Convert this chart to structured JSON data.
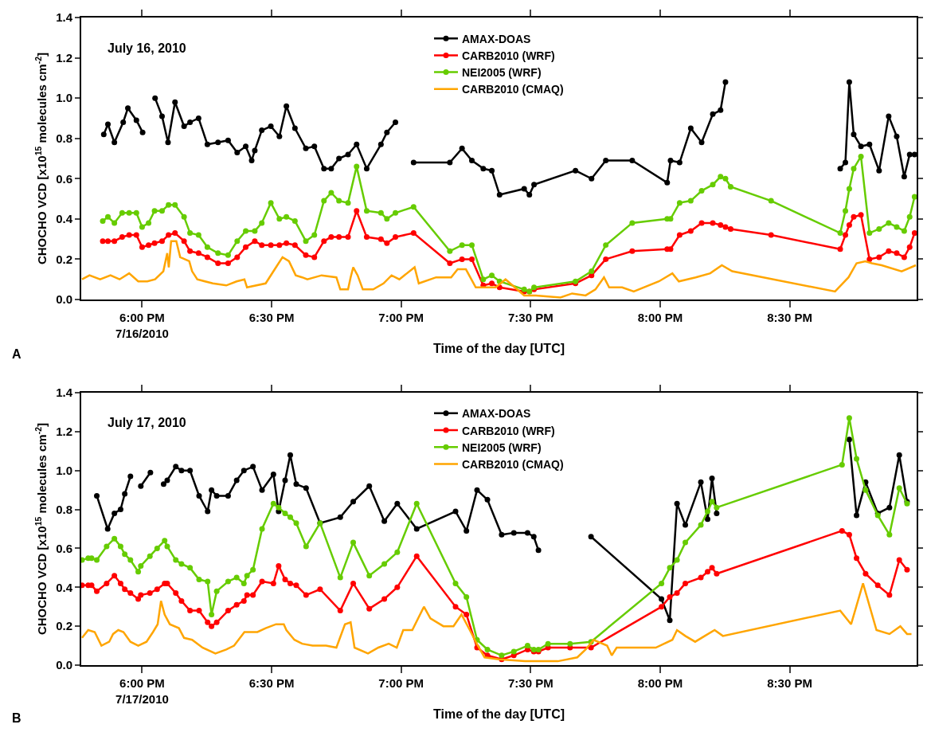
{
  "chart_data": [
    {
      "type": "line",
      "xlabel": "Time of the day [UTC]",
      "ylabel": "CHOCHO VCD [x10$^{15}$ molecules cm$^{-2}$]",
      "annotations": [
        "July 16, 2010",
        "A"
      ],
      "legend": "top",
      "marker": "circle",
      "line_style": "solid",
      "grid": false,
      "xlim": [
        17.765,
        20.99
      ],
      "xticks": [
        {
          "value": 18,
          "label": "6:00 PM\n7/16/2010"
        },
        {
          "value": 18.5,
          "label": "6:30 PM"
        },
        {
          "value": 19,
          "label": "7:00 PM"
        },
        {
          "value": 19.5,
          "label": "7:30 PM"
        },
        {
          "value": 20,
          "label": "8:00 PM"
        },
        {
          "value": 20.5,
          "label": "8:30 PM"
        }
      ],
      "ylim": [
        0,
        1.4
      ],
      "yticks": [
        {
          "value": 0,
          "label": "0.0"
        },
        {
          "value": 0.2,
          "label": "0.2"
        },
        {
          "value": 0.4,
          "label": "0.4"
        },
        {
          "value": 0.6,
          "label": "0.6"
        },
        {
          "value": 0.8,
          "label": "0.8"
        },
        {
          "value": 1,
          "label": "1.0"
        },
        {
          "value": 1.2,
          "label": "1.2"
        },
        {
          "value": 1.4,
          "label": "1.4"
        }
      ],
      "series": [
        {
          "name": "AMAX-DOAS",
          "color": "#000000",
          "x": [
            17.852,
            17.868,
            17.893,
            17.927,
            17.945,
            17.978,
            18.002,
            18.025,
            18.05,
            18.077,
            18.1,
            18.127,
            18.162,
            18.185,
            18.218,
            18.252,
            18.293,
            18.332,
            18.367,
            18.4,
            18.423,
            18.435,
            18.462,
            18.497,
            18.53,
            18.557,
            18.59,
            18.632,
            18.665,
            18.702,
            18.73,
            18.76,
            18.795,
            18.828,
            18.867,
            18.922,
            18.945,
            18.978,
            19.02,
            19.048,
            19.188,
            19.235,
            19.273,
            19.317,
            19.35,
            19.38,
            19.475,
            19.495,
            19.513,
            19.673,
            19.735,
            19.79,
            19.892,
            20.027,
            20.04,
            20.075,
            20.118,
            20.16,
            20.203,
            20.233,
            20.252,
            20.5,
            20.695,
            20.715,
            20.73,
            20.747,
            20.775,
            20.808,
            20.845,
            20.882,
            20.913,
            20.942,
            20.963,
            20.982
          ],
          "values": [
            0.82,
            0.87,
            0.78,
            0.88,
            0.95,
            0.89,
            0.83,
            null,
            1.0,
            0.91,
            0.78,
            0.98,
            0.86,
            0.88,
            0.9,
            0.77,
            0.78,
            0.79,
            0.73,
            0.76,
            0.69,
            0.74,
            0.84,
            0.86,
            0.81,
            0.96,
            0.85,
            0.75,
            0.76,
            0.65,
            0.65,
            0.7,
            0.72,
            0.77,
            0.65,
            0.77,
            0.83,
            0.88,
            null,
            0.68,
            0.68,
            0.75,
            0.69,
            0.65,
            0.64,
            0.52,
            0.55,
            0.52,
            0.57,
            0.64,
            0.6,
            0.69,
            0.69,
            0.58,
            0.69,
            0.68,
            0.85,
            0.78,
            0.92,
            0.94,
            1.08,
            null,
            0.65,
            0.68,
            1.08,
            0.82,
            0.76,
            0.77,
            0.64,
            0.91,
            0.81,
            0.61,
            0.72,
            0.72
          ]
        },
        {
          "name": "CARB2010 (WRF)",
          "color": "#ff0000",
          "x": [
            17.848,
            17.868,
            17.893,
            17.923,
            17.95,
            17.978,
            18.0,
            18.025,
            18.048,
            18.077,
            18.102,
            18.127,
            18.162,
            18.185,
            18.218,
            18.252,
            18.293,
            18.332,
            18.367,
            18.4,
            18.435,
            18.462,
            18.497,
            18.53,
            18.557,
            18.59,
            18.632,
            18.665,
            18.702,
            18.73,
            18.76,
            18.795,
            18.828,
            18.867,
            18.922,
            18.945,
            18.978,
            19.048,
            19.188,
            19.235,
            19.273,
            19.317,
            19.35,
            19.38,
            19.475,
            19.495,
            19.513,
            19.673,
            19.735,
            19.79,
            19.892,
            20.027,
            20.04,
            20.075,
            20.118,
            20.16,
            20.203,
            20.233,
            20.252,
            20.272,
            20.428,
            20.695,
            20.715,
            20.73,
            20.747,
            20.775,
            20.808,
            20.845,
            20.882,
            20.913,
            20.942,
            20.963,
            20.982
          ],
          "values": [
            0.29,
            0.29,
            0.29,
            0.31,
            0.32,
            0.32,
            0.26,
            0.27,
            0.28,
            0.29,
            0.32,
            0.33,
            0.29,
            0.24,
            0.23,
            0.21,
            0.18,
            0.18,
            0.21,
            0.26,
            0.29,
            0.27,
            0.27,
            0.27,
            0.28,
            0.27,
            0.22,
            0.21,
            0.29,
            0.31,
            0.31,
            0.31,
            0.44,
            0.31,
            0.3,
            0.28,
            0.31,
            0.33,
            0.18,
            0.2,
            0.2,
            0.07,
            0.08,
            0.06,
            0.04,
            0.04,
            0.05,
            0.08,
            0.12,
            0.2,
            0.24,
            0.25,
            0.25,
            0.32,
            0.34,
            0.38,
            0.38,
            0.37,
            0.36,
            0.35,
            0.32,
            0.25,
            0.32,
            0.37,
            0.41,
            0.42,
            0.2,
            0.21,
            0.24,
            0.23,
            0.21,
            0.26,
            0.33
          ]
        },
        {
          "name": "NEI2005 (WRF)",
          "color": "#66cc00",
          "x": [
            17.848,
            17.868,
            17.893,
            17.923,
            17.95,
            17.978,
            18.0,
            18.025,
            18.048,
            18.077,
            18.102,
            18.127,
            18.162,
            18.185,
            18.218,
            18.252,
            18.293,
            18.332,
            18.367,
            18.4,
            18.435,
            18.462,
            18.497,
            18.53,
            18.557,
            18.59,
            18.632,
            18.665,
            18.702,
            18.73,
            18.76,
            18.795,
            18.828,
            18.867,
            18.922,
            18.945,
            18.978,
            19.048,
            19.188,
            19.235,
            19.273,
            19.317,
            19.35,
            19.38,
            19.475,
            19.495,
            19.513,
            19.673,
            19.735,
            19.79,
            19.892,
            20.027,
            20.04,
            20.075,
            20.118,
            20.16,
            20.203,
            20.233,
            20.252,
            20.272,
            20.428,
            20.695,
            20.715,
            20.73,
            20.747,
            20.775,
            20.808,
            20.845,
            20.882,
            20.913,
            20.942,
            20.963,
            20.982
          ],
          "values": [
            0.39,
            0.41,
            0.38,
            0.43,
            0.43,
            0.43,
            0.36,
            0.38,
            0.44,
            0.44,
            0.47,
            0.47,
            0.41,
            0.33,
            0.32,
            0.26,
            0.23,
            0.22,
            0.29,
            0.34,
            0.34,
            0.38,
            0.48,
            0.4,
            0.41,
            0.39,
            0.29,
            0.32,
            0.49,
            0.53,
            0.49,
            0.48,
            0.66,
            0.44,
            0.43,
            0.4,
            0.43,
            0.46,
            0.24,
            0.27,
            0.27,
            0.1,
            0.12,
            0.09,
            0.05,
            0.04,
            0.06,
            0.09,
            0.14,
            0.27,
            0.38,
            0.4,
            0.4,
            0.48,
            0.49,
            0.54,
            0.57,
            0.61,
            0.6,
            0.56,
            0.49,
            0.33,
            0.44,
            0.55,
            0.65,
            0.71,
            0.33,
            0.35,
            0.38,
            0.36,
            0.34,
            0.41,
            0.51
          ]
        },
        {
          "name": "CARB2010 (CMAQ)",
          "color": "#ffa500",
          "marker": "none",
          "x": [
            17.768,
            17.797,
            17.838,
            17.878,
            17.913,
            17.95,
            17.985,
            18.02,
            18.05,
            18.082,
            18.097,
            18.103,
            18.112,
            18.132,
            18.147,
            18.182,
            18.193,
            18.213,
            18.273,
            18.325,
            18.365,
            18.395,
            18.405,
            18.477,
            18.517,
            18.542,
            18.567,
            18.593,
            18.618,
            18.638,
            18.693,
            18.75,
            18.765,
            18.795,
            18.805,
            18.815,
            18.832,
            18.852,
            18.892,
            18.932,
            18.963,
            18.993,
            19.052,
            19.068,
            19.135,
            19.193,
            19.218,
            19.25,
            19.288,
            19.365,
            19.403,
            19.475,
            19.52,
            19.615,
            19.66,
            19.712,
            19.75,
            19.783,
            19.803,
            19.853,
            19.898,
            19.995,
            20.047,
            20.072,
            20.137,
            20.193,
            20.238,
            20.278,
            20.675,
            20.727,
            20.758,
            20.792,
            20.817,
            20.855,
            20.932,
            20.987
          ],
          "values": [
            0.1,
            0.12,
            0.1,
            0.12,
            0.1,
            0.13,
            0.09,
            0.09,
            0.1,
            0.14,
            0.23,
            0.16,
            0.29,
            0.29,
            0.21,
            0.19,
            0.14,
            0.1,
            0.08,
            0.07,
            0.09,
            0.1,
            0.06,
            0.08,
            0.16,
            0.21,
            0.19,
            0.12,
            0.11,
            0.1,
            0.12,
            0.11,
            0.05,
            0.05,
            0.11,
            0.16,
            0.12,
            0.05,
            0.05,
            0.08,
            0.12,
            0.1,
            0.16,
            0.08,
            0.11,
            0.11,
            0.15,
            0.15,
            0.06,
            0.06,
            0.1,
            0.02,
            0.02,
            0.01,
            0.03,
            0.02,
            0.05,
            0.11,
            0.06,
            0.06,
            0.04,
            0.09,
            0.13,
            0.09,
            0.11,
            0.13,
            0.17,
            0.14,
            0.04,
            0.11,
            0.18,
            0.19,
            0.18,
            0.17,
            0.14,
            0.17
          ]
        }
      ]
    },
    {
      "type": "line",
      "xlabel": "Time of the day [UTC]",
      "ylabel": "CHOCHO VCD [x10$^{15}$ molecules cm$^{-2}$]",
      "annotations": [
        "July 17, 2010",
        "B"
      ],
      "legend": "top",
      "marker": "circle",
      "line_style": "solid",
      "grid": false,
      "xlim": [
        17.765,
        20.99
      ],
      "xticks": [
        {
          "value": 18,
          "label": "6:00 PM\n7/17/2010"
        },
        {
          "value": 18.5,
          "label": "6:30 PM"
        },
        {
          "value": 19,
          "label": "7:00 PM"
        },
        {
          "value": 19.5,
          "label": "7:30 PM"
        },
        {
          "value": 20,
          "label": "8:00 PM"
        },
        {
          "value": 20.5,
          "label": "8:30 PM"
        }
      ],
      "ylim": [
        0,
        1.4
      ],
      "yticks": [
        {
          "value": 0,
          "label": "0.0"
        },
        {
          "value": 0.2,
          "label": "0.2"
        },
        {
          "value": 0.4,
          "label": "0.4"
        },
        {
          "value": 0.6,
          "label": "0.6"
        },
        {
          "value": 0.8,
          "label": "0.8"
        },
        {
          "value": 1,
          "label": "1.0"
        },
        {
          "value": 1.2,
          "label": "1.2"
        },
        {
          "value": 1.4,
          "label": "1.4"
        }
      ],
      "series": [
        {
          "name": "AMAX-DOAS",
          "color": "#000000",
          "x": [
            17.825,
            17.867,
            17.893,
            17.917,
            17.933,
            17.955,
            17.975,
            17.995,
            18.032,
            18.06,
            18.083,
            18.097,
            18.13,
            18.152,
            18.185,
            18.22,
            18.253,
            18.268,
            18.288,
            18.332,
            18.365,
            18.393,
            18.428,
            18.463,
            18.507,
            18.527,
            18.552,
            18.572,
            18.595,
            18.633,
            18.687,
            18.765,
            18.815,
            18.877,
            18.935,
            18.985,
            19.06,
            19.21,
            19.252,
            19.293,
            19.333,
            19.388,
            19.435,
            19.488,
            19.512,
            19.53,
            19.65,
            19.733,
            20.005,
            20.037,
            20.065,
            20.097,
            20.157,
            20.183,
            20.2,
            20.218,
            20.5,
            20.73,
            20.758,
            20.793,
            20.84,
            20.885,
            20.923,
            20.953
          ],
          "values": [
            0.87,
            0.7,
            0.78,
            0.8,
            0.88,
            0.97,
            null,
            0.92,
            0.99,
            null,
            0.93,
            0.95,
            1.02,
            1.0,
            1.0,
            0.87,
            0.79,
            0.9,
            0.87,
            0.87,
            0.95,
            1.0,
            1.02,
            0.9,
            0.98,
            0.79,
            0.95,
            1.08,
            0.93,
            0.91,
            0.73,
            0.76,
            0.84,
            0.92,
            0.74,
            0.83,
            0.7,
            0.79,
            0.69,
            0.9,
            0.85,
            0.67,
            0.68,
            0.68,
            0.66,
            0.59,
            null,
            0.66,
            0.34,
            0.23,
            0.83,
            0.72,
            0.94,
            0.75,
            0.96,
            0.78,
            null,
            1.16,
            0.77,
            0.94,
            0.78,
            0.81,
            1.08,
            0.84
          ]
        },
        {
          "name": "CARB2010 (WRF)",
          "color": "#ff0000",
          "x": [
            17.768,
            17.792,
            17.805,
            17.825,
            17.863,
            17.893,
            17.917,
            17.933,
            17.955,
            17.985,
            17.995,
            18.03,
            18.058,
            18.087,
            18.097,
            18.13,
            18.152,
            18.185,
            18.22,
            18.253,
            18.268,
            18.288,
            18.332,
            18.365,
            18.393,
            18.405,
            18.428,
            18.463,
            18.507,
            18.527,
            18.552,
            18.572,
            18.595,
            18.633,
            18.687,
            18.765,
            18.815,
            18.877,
            18.935,
            18.985,
            19.06,
            19.21,
            19.252,
            19.293,
            19.333,
            19.388,
            19.435,
            19.488,
            19.512,
            19.53,
            19.567,
            19.652,
            19.733,
            20.005,
            20.037,
            20.065,
            20.097,
            20.157,
            20.183,
            20.2,
            20.218,
            20.702,
            20.73,
            20.758,
            20.793,
            20.84,
            20.885,
            20.923,
            20.953
          ],
          "values": [
            0.41,
            0.41,
            0.41,
            0.38,
            0.42,
            0.46,
            0.42,
            0.39,
            0.37,
            0.34,
            0.36,
            0.37,
            0.39,
            0.42,
            0.42,
            0.37,
            0.33,
            0.28,
            0.28,
            0.22,
            0.2,
            0.22,
            0.28,
            0.31,
            0.33,
            0.36,
            0.36,
            0.43,
            0.42,
            0.51,
            0.44,
            0.42,
            0.41,
            0.36,
            0.39,
            0.28,
            0.42,
            0.29,
            0.34,
            0.4,
            0.56,
            0.3,
            0.26,
            0.09,
            0.05,
            0.03,
            0.05,
            0.08,
            0.07,
            0.07,
            0.09,
            0.09,
            0.09,
            0.3,
            0.35,
            0.37,
            0.42,
            0.45,
            0.48,
            0.5,
            0.47,
            0.69,
            0.67,
            0.55,
            0.47,
            0.41,
            0.36,
            0.54,
            0.49
          ]
        },
        {
          "name": "NEI2005 (WRF)",
          "color": "#66cc00",
          "x": [
            17.768,
            17.792,
            17.805,
            17.825,
            17.863,
            17.893,
            17.917,
            17.933,
            17.955,
            17.985,
            17.995,
            18.03,
            18.058,
            18.087,
            18.097,
            18.13,
            18.152,
            18.185,
            18.22,
            18.253,
            18.268,
            18.288,
            18.332,
            18.365,
            18.393,
            18.405,
            18.428,
            18.463,
            18.507,
            18.527,
            18.552,
            18.572,
            18.595,
            18.633,
            18.687,
            18.765,
            18.815,
            18.877,
            18.935,
            18.985,
            19.06,
            19.21,
            19.252,
            19.293,
            19.333,
            19.388,
            19.435,
            19.488,
            19.512,
            19.53,
            19.567,
            19.652,
            19.733,
            20.005,
            20.037,
            20.065,
            20.097,
            20.157,
            20.183,
            20.2,
            20.218,
            20.702,
            20.73,
            20.758,
            20.793,
            20.84,
            20.885,
            20.923,
            20.953
          ],
          "values": [
            0.54,
            0.55,
            0.55,
            0.54,
            0.61,
            0.65,
            0.61,
            0.57,
            0.54,
            0.48,
            0.51,
            0.56,
            0.6,
            0.64,
            0.61,
            0.54,
            0.52,
            0.5,
            0.44,
            0.43,
            0.26,
            0.38,
            0.43,
            0.45,
            0.42,
            0.46,
            0.49,
            0.7,
            0.83,
            0.81,
            0.78,
            0.76,
            0.73,
            0.61,
            0.73,
            0.45,
            0.63,
            0.46,
            0.52,
            0.58,
            0.83,
            0.42,
            0.35,
            0.13,
            0.08,
            0.05,
            0.07,
            0.1,
            0.08,
            0.08,
            0.11,
            0.11,
            0.12,
            0.42,
            0.5,
            0.54,
            0.63,
            0.72,
            0.79,
            0.84,
            0.81,
            1.03,
            1.27,
            1.06,
            0.9,
            0.77,
            0.67,
            0.91,
            0.83
          ]
        },
        {
          "name": "CARB2010 (CMAQ)",
          "color": "#ffa500",
          "marker": "none",
          "x": [
            17.768,
            17.792,
            17.817,
            17.843,
            17.873,
            17.888,
            17.908,
            17.928,
            17.955,
            17.985,
            18.017,
            18.042,
            18.06,
            18.073,
            18.087,
            18.107,
            18.142,
            18.162,
            18.193,
            18.233,
            18.283,
            18.325,
            18.355,
            18.395,
            18.445,
            18.477,
            18.517,
            18.547,
            18.557,
            18.588,
            18.618,
            18.658,
            18.71,
            18.75,
            18.783,
            18.805,
            18.82,
            18.872,
            18.912,
            18.952,
            18.983,
            19.008,
            19.043,
            19.088,
            19.113,
            19.163,
            19.202,
            19.233,
            19.265,
            19.292,
            19.322,
            19.378,
            19.478,
            19.605,
            19.68,
            19.712,
            19.743,
            19.795,
            19.813,
            19.832,
            19.983,
            20.047,
            20.065,
            20.097,
            20.135,
            20.172,
            20.21,
            20.242,
            20.695,
            20.737,
            20.783,
            20.835,
            20.885,
            20.927,
            20.953,
            20.97
          ],
          "values": [
            0.14,
            0.18,
            0.17,
            0.1,
            0.12,
            0.16,
            0.18,
            0.17,
            0.12,
            0.1,
            0.12,
            0.17,
            0.21,
            0.33,
            0.26,
            0.21,
            0.19,
            0.14,
            0.13,
            0.09,
            0.06,
            0.08,
            0.1,
            0.17,
            0.17,
            0.19,
            0.21,
            0.21,
            0.18,
            0.13,
            0.11,
            0.1,
            0.1,
            0.09,
            0.21,
            0.22,
            0.09,
            0.06,
            0.09,
            0.11,
            0.09,
            0.18,
            0.18,
            0.3,
            0.24,
            0.2,
            0.2,
            0.26,
            0.18,
            0.11,
            0.04,
            0.03,
            0.02,
            0.02,
            0.04,
            0.08,
            0.13,
            0.1,
            0.05,
            0.09,
            0.09,
            0.13,
            0.18,
            0.15,
            0.12,
            0.15,
            0.18,
            0.15,
            0.28,
            0.21,
            0.42,
            0.18,
            0.16,
            0.2,
            0.16,
            0.16
          ]
        }
      ]
    }
  ]
}
